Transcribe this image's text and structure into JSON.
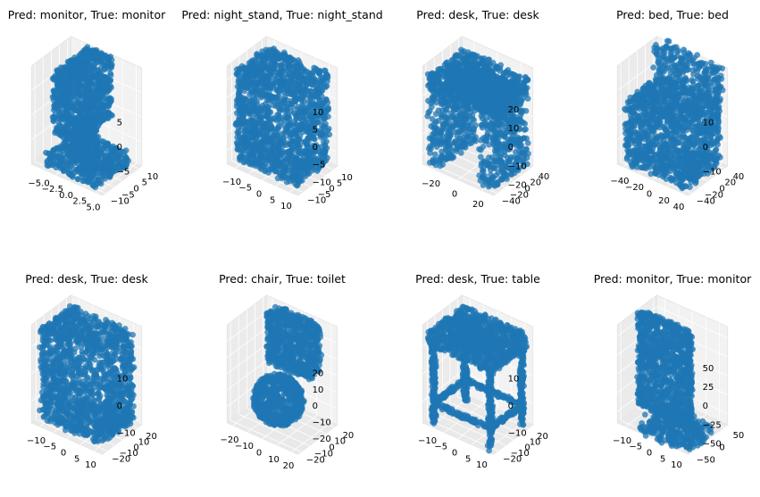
{
  "chart_data": [
    {
      "type": "scatter",
      "title": "Pred: monitor, True: monitor",
      "x_ticks": [
        "−5.0",
        "−2.5",
        "0.0",
        "2.5",
        "5.0"
      ],
      "y_ticks": [
        "−10",
        "−5",
        "0",
        "5",
        "10"
      ],
      "z_ticks": [
        "−5",
        "0",
        "5"
      ],
      "xlim": [
        -7,
        6
      ],
      "ylim": [
        -12,
        12
      ],
      "zlim": [
        -10,
        10
      ],
      "shape": "monitor",
      "point_color": "#1f77b4"
    },
    {
      "type": "scatter",
      "title": "Pred: night_stand, True: night_stand",
      "x_ticks": [
        "−10",
        "−5",
        "0",
        "5",
        "10"
      ],
      "y_ticks": [
        "−10",
        "−5",
        "0",
        "5",
        "10"
      ],
      "z_ticks": [
        "−10",
        "−5",
        "0",
        "5",
        "10"
      ],
      "xlim": [
        -13,
        13
      ],
      "ylim": [
        -13,
        13
      ],
      "zlim": [
        -14,
        14
      ],
      "shape": "box",
      "point_color": "#1f77b4"
    },
    {
      "type": "scatter",
      "title": "Pred: desk, True: desk",
      "x_ticks": [
        "−20",
        "0",
        "20"
      ],
      "y_ticks": [
        "−40",
        "−20",
        "0",
        "20",
        "40"
      ],
      "z_ticks": [
        "−20",
        "−10",
        "0",
        "10",
        "20"
      ],
      "xlim": [
        -30,
        30
      ],
      "ylim": [
        -48,
        48
      ],
      "zlim": [
        -26,
        26
      ],
      "shape": "desk",
      "point_color": "#1f77b4"
    },
    {
      "type": "scatter",
      "title": "Pred: bed, True: bed",
      "x_ticks": [
        "−40",
        "−20",
        "0",
        "20",
        "40"
      ],
      "y_ticks": [
        "−40",
        "−20",
        "0",
        "20",
        "40"
      ],
      "z_ticks": [
        "−10",
        "0",
        "10"
      ],
      "xlim": [
        -48,
        48
      ],
      "ylim": [
        -48,
        48
      ],
      "zlim": [
        -20,
        20
      ],
      "shape": "bed",
      "point_color": "#1f77b4"
    },
    {
      "type": "scatter",
      "title": "Pred: desk, True: desk",
      "x_ticks": [
        "−10",
        "−5",
        "0",
        "5",
        "10"
      ],
      "y_ticks": [
        "−20",
        "−10",
        "0",
        "10",
        "20"
      ],
      "z_ticks": [
        "−10",
        "0",
        "10"
      ],
      "xlim": [
        -13,
        13
      ],
      "ylim": [
        -26,
        26
      ],
      "zlim": [
        -18,
        18
      ],
      "shape": "box",
      "point_color": "#1f77b4"
    },
    {
      "type": "scatter",
      "title": "Pred: chair, True: toilet",
      "x_ticks": [
        "−20",
        "−10",
        "0",
        "10",
        "20"
      ],
      "y_ticks": [
        "−20",
        "−10",
        "0",
        "10",
        "20"
      ],
      "z_ticks": [
        "−20",
        "−10",
        "0",
        "10",
        "20"
      ],
      "xlim": [
        -24,
        24
      ],
      "ylim": [
        -24,
        24
      ],
      "zlim": [
        -30,
        30
      ],
      "shape": "toilet",
      "point_color": "#1f77b4"
    },
    {
      "type": "scatter",
      "title": "Pred: desk, True: table",
      "x_ticks": [
        "−10",
        "−5",
        "0",
        "5",
        "10"
      ],
      "y_ticks": [
        "−20",
        "−10",
        "0",
        "10",
        "20"
      ],
      "z_ticks": [
        "−10",
        "0",
        "10"
      ],
      "xlim": [
        -13,
        13
      ],
      "ylim": [
        -26,
        26
      ],
      "zlim": [
        -18,
        18
      ],
      "shape": "table",
      "point_color": "#1f77b4"
    },
    {
      "type": "scatter",
      "title": "Pred: monitor, True: monitor",
      "x_ticks": [
        "−10",
        "−5",
        "0",
        "5",
        "10"
      ],
      "y_ticks": [
        "−50",
        "0",
        "50"
      ],
      "z_ticks": [
        "−50",
        "−25",
        "0",
        "25",
        "50"
      ],
      "xlim": [
        -13,
        13
      ],
      "ylim": [
        -60,
        60
      ],
      "zlim": [
        -65,
        65
      ],
      "shape": "monitor2",
      "point_color": "#1f77b4"
    }
  ]
}
